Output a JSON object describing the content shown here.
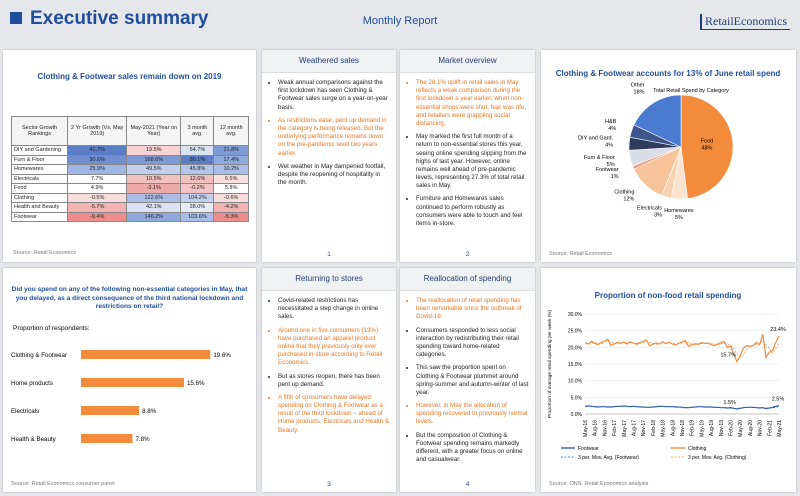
{
  "header": {
    "title": "Executive summary",
    "subtitle": "Monthly Report",
    "logo": "RetailEconomics"
  },
  "table_panel": {
    "title": "Clothing & Footwear sales remain down on 2019",
    "columns": [
      "Sector Growth Rankings",
      "2 Yr Growth (Vs. May 2019)",
      "May-2021 (Year on Year)",
      "3 month avg.",
      "12 month avg."
    ],
    "rows": [
      [
        "DIY and Gardening",
        "41.7%",
        "19.5%",
        "54.7%",
        "21.8%"
      ],
      [
        "Furn & Floor",
        "30.6%",
        "168.6%",
        "80.1%",
        "17.4%"
      ],
      [
        "Homewares",
        "25.9%",
        "49.5%",
        "45.8%",
        "10.2%"
      ],
      [
        "Electricals",
        "7.7%",
        "10.5%",
        "12.6%",
        "6.5%"
      ],
      [
        "Food",
        "4.9%",
        "-3.1%",
        "-0.2%",
        "5.8%"
      ],
      [
        "Clothing",
        "-0.5%",
        "122.6%",
        "104.2%",
        "-0.6%"
      ],
      [
        "Health and Beauty",
        "-5.7%",
        "42.1%",
        "28.0%",
        "-4.2%"
      ],
      [
        "Footwear",
        "-9.4%",
        "146.2%",
        "103.6%",
        "-5.3%"
      ]
    ],
    "cell_colors": [
      [
        "#5a7dc8",
        "#f9d3d3",
        "#dbe3f3",
        "#7f9bd5"
      ],
      [
        "#6f8fd0",
        "#7f9bd5",
        "#5a7dc8",
        "#8fa8dd"
      ],
      [
        "#9fb5e2",
        "#c2d0ee",
        "#b3c5ea",
        "#a9bde6"
      ],
      [
        "#ffffff",
        "#f3c0c0",
        "#f3c0c0",
        "#f9e0e0"
      ],
      [
        "#ffffff",
        "#f0a9a9",
        "#f4c4c4",
        "#ffffff"
      ],
      [
        "#f9dede",
        "#a9bde6",
        "#c2d0ee",
        "#f9dede"
      ],
      [
        "#f3b3b3",
        "#dbe3f3",
        "#e6ecf7",
        "#f3b3b3"
      ],
      [
        "#ec8c8c",
        "#8fa8dd",
        "#a9bde6",
        "#ec8c8c"
      ]
    ],
    "source": "Source: Retail Economics"
  },
  "text_panels": [
    {
      "title": "Weathered sales",
      "page": "1",
      "bullets": [
        {
          "text": "Weak annual comparisons against the first lockdown has seen Clothing & Footwear sales surge on a year-on-year basis.",
          "highlight": false
        },
        {
          "text": "As restrictions ease, pent up demand in the category is being released. But the underlying performance remains down on the pre-pandemic level two years earlier.",
          "highlight": true
        },
        {
          "text": "Wet weather in May dampened footfall, despite the reopening of hospitality in the month.",
          "highlight": false
        }
      ]
    },
    {
      "title": "Market overview",
      "page": "2",
      "bullets": [
        {
          "text": "The 28.1% uplift in retail sales in May reflects a weak comparison during the first lockdown a year earlier, when non-essential shops were shut, fear was rife, and retailers were grappling social distancing.",
          "highlight": true
        },
        {
          "text": "May marked the first full month of a return to non-essential stores this year, seeing online spending slipping from the highs of last year. However, online remains well ahead of pre-pandemic levels, representing 27.3% of total retail sales in May.",
          "highlight": false
        },
        {
          "text": "Furniture and Homewares sales continued to perform robustly as consumers were able to touch and feel items in-store.",
          "highlight": false
        }
      ]
    },
    {
      "title": "Returning to stores",
      "page": "3",
      "bullets": [
        {
          "text": "Covid-related restrictions has necessitated a step change in online sales.",
          "highlight": false
        },
        {
          "text": "Around one in five consumers (19%) have purchased an apparel product online that they previously only ever purchased in-store according to Retail Economics.",
          "highlight": true
        },
        {
          "text": "But as stores reopen, there has been pent up demand.",
          "highlight": false
        },
        {
          "text": "A fifth of consumers have delayed spending on Clothing & Footwear as a result of the third lockdown – ahead of Home products, Electricals and Health & Beauty.",
          "highlight": true
        }
      ]
    },
    {
      "title": "Reallocation of spending",
      "page": "4",
      "bullets": [
        {
          "text": "The reallocation of retail spending has been remarkable since the outbreak of Covid-19.",
          "highlight": true
        },
        {
          "text": "Consumers responded to less social interaction by redistributing their retail spending toward home-related categories.",
          "highlight": false
        },
        {
          "text": "This saw the proportion spent on Clothing & Footwear plummet around spring-summer and autumn-winter of last year.",
          "highlight": false
        },
        {
          "text": "However, in May the allocation of spending recovered to previously normal levels.",
          "highlight": true
        },
        {
          "text": "But the composition of Clothing & Footwear spending remains markedly different, with a greater focus on online and casualwear.",
          "highlight": false
        }
      ]
    }
  ],
  "chart_data": [
    {
      "type": "pie",
      "title": "Clothing & Footwear accounts for 13% of June retail spend",
      "subtitle": "Total Retail Spend by Category",
      "categories": [
        "Food",
        "Homewares",
        "Electricals",
        "Clothing",
        "Footwear",
        "Furn & Floor",
        "DIY and Gard.",
        "H&B",
        "Other"
      ],
      "values": [
        48,
        5,
        3,
        12,
        1,
        5,
        4,
        4,
        18
      ],
      "value_labels": [
        "48%",
        "5%",
        "3%",
        "12%",
        "1%",
        "5%",
        "4%",
        "4%",
        "18%"
      ],
      "colors": [
        "#f28c3c",
        "#fbe3cf",
        "#f9d2b0",
        "#f7c39a",
        "#ef9b7e",
        "#d9dde6",
        "#2f3b5c",
        "#3f568c",
        "#4a7bd0"
      ],
      "source": "Source: Retail Economics"
    },
    {
      "type": "bar",
      "title": "Did you spend on any of the following non-essential categories in May, that you delayed, as a direct consequence of the third national lockdown and restrictions on retail?",
      "subtitle": "Proportion of respondents:",
      "categories": [
        "Clothing & Footwear",
        "Home products",
        "Electricals",
        "Health & Beauty"
      ],
      "values": [
        19.6,
        15.6,
        8.8,
        7.8
      ],
      "value_labels": [
        "19.6%",
        "15.6%",
        "8.8%",
        "7.8%"
      ],
      "color": "#f28c3c",
      "source": "Source: Retail Economics consumer panel"
    },
    {
      "type": "line",
      "title": "Proportion of non-food retail spending",
      "y_label": "Proportion of average retail spending per week (%)",
      "categories": [
        "May-16",
        null,
        null,
        "Aug-16",
        null,
        null,
        "Nov-16",
        null,
        null,
        "Feb-17",
        null,
        null,
        "May-17",
        null,
        null,
        "Aug-17",
        null,
        null,
        "Nov-17",
        null,
        null,
        "Feb-18",
        null,
        null,
        "May-18",
        null,
        null,
        "Aug-18",
        null,
        null,
        "Nov-18",
        null,
        null,
        "Feb-19",
        null,
        null,
        "May-19",
        null,
        null,
        "Aug-19",
        null,
        null,
        "Nov-19",
        null,
        null,
        "Feb-20",
        null,
        null,
        "May-20",
        null,
        null,
        "Aug-20",
        null,
        null,
        "Nov-20",
        null,
        null,
        "Feb-21",
        null,
        null,
        "May-21"
      ],
      "ylim": [
        0,
        30
      ],
      "yticks": [
        {
          "value": 0,
          "label": "0.0%"
        },
        {
          "value": 5,
          "label": "5.0%"
        },
        {
          "value": 10,
          "label": "10.0%"
        },
        {
          "value": 15,
          "label": "15.0%"
        },
        {
          "value": 20,
          "label": "20.0%"
        },
        {
          "value": 25,
          "label": "25.0%"
        },
        {
          "value": 30,
          "label": "30.0%"
        }
      ],
      "grid": true,
      "series": [
        {
          "name": "Footwear",
          "color": "#2f5fb3",
          "dash": false,
          "values": [
            2.3,
            2.4,
            2.3,
            2.2,
            2.1,
            2.2,
            2.2,
            2.1,
            2.1,
            2.2,
            2.3,
            2.3,
            2.4,
            2.3,
            2.2,
            2.3,
            2.2,
            2.1,
            2.1,
            2.0,
            2.0,
            2.1,
            2.2,
            2.3,
            2.3,
            2.2,
            2.2,
            2.2,
            2.1,
            2.1,
            2.0,
            1.9,
            1.9,
            2.0,
            2.1,
            2.2,
            2.2,
            2.1,
            2.1,
            2.1,
            2.0,
            2.0,
            1.9,
            1.9,
            1.8,
            1.9,
            1.7,
            1.5,
            1.7,
            1.9,
            2.0,
            2.0,
            2.0,
            1.9,
            1.8,
            1.9,
            1.6,
            1.8,
            2.0,
            2.3,
            2.5
          ],
          "value_labels": [
            null,
            null,
            null,
            null,
            null,
            null,
            null,
            null,
            null,
            null,
            null,
            null,
            null,
            null,
            null,
            null,
            null,
            null,
            null,
            null,
            null,
            null,
            null,
            null,
            null,
            null,
            null,
            null,
            null,
            null,
            null,
            null,
            null,
            null,
            null,
            null,
            null,
            null,
            null,
            null,
            null,
            null,
            null,
            null,
            null,
            null,
            null,
            "1.5%",
            null,
            null,
            null,
            null,
            null,
            null,
            null,
            null,
            null,
            null,
            null,
            null,
            "2.5%"
          ]
        },
        {
          "name": "Clothing",
          "color": "#f28c3c",
          "dash": false,
          "values": [
            21.5,
            21.0,
            21.8,
            21.2,
            20.8,
            21.4,
            21.9,
            22.4,
            20.6,
            21.0,
            21.5,
            21.2,
            21.6,
            21.0,
            21.7,
            21.3,
            20.9,
            21.5,
            21.8,
            22.2,
            20.4,
            20.9,
            21.3,
            21.0,
            21.7,
            21.1,
            21.5,
            21.0,
            20.7,
            21.2,
            21.6,
            22.0,
            20.3,
            20.8,
            21.1,
            20.9,
            21.4,
            21.2,
            21.3,
            20.8,
            20.5,
            21.0,
            21.4,
            21.8,
            20.0,
            20.4,
            18.0,
            15.7,
            17.5,
            19.8,
            20.5,
            20.3,
            20.6,
            21.5,
            20.8,
            23.9,
            17.0,
            18.5,
            19.0,
            21.5,
            23.4
          ],
          "value_labels": [
            null,
            null,
            null,
            null,
            null,
            null,
            null,
            null,
            null,
            null,
            null,
            null,
            null,
            null,
            null,
            null,
            null,
            null,
            null,
            null,
            null,
            null,
            null,
            null,
            null,
            null,
            null,
            null,
            null,
            null,
            null,
            null,
            null,
            null,
            null,
            null,
            null,
            null,
            null,
            null,
            null,
            null,
            null,
            null,
            null,
            null,
            null,
            "15.7%",
            null,
            null,
            null,
            null,
            null,
            null,
            null,
            null,
            null,
            null,
            null,
            null,
            "23.4%"
          ]
        },
        {
          "name": "3 per. Mov. Avg. (Footwear)",
          "color": "#2f5fb3",
          "dash": true,
          "values": [
            null,
            null,
            2.3,
            2.3,
            2.2,
            2.2,
            2.2,
            2.1,
            2.1,
            2.2,
            2.2,
            2.3,
            2.3,
            2.3,
            2.3,
            2.3,
            2.2,
            2.2,
            2.1,
            2.1,
            2.0,
            2.1,
            2.1,
            2.2,
            2.3,
            2.3,
            2.2,
            2.2,
            2.2,
            2.1,
            2.0,
            2.0,
            1.9,
            2.0,
            2.1,
            2.2,
            2.2,
            2.1,
            2.1,
            2.1,
            2.0,
            1.9,
            1.9,
            1.9,
            1.8,
            1.7,
            1.7,
            1.7,
            1.8,
            1.9,
            2.0,
            2.0,
            1.9,
            1.9,
            1.9,
            1.8,
            1.8,
            1.8,
            1.8,
            2.0,
            2.3
          ]
        },
        {
          "name": "3 per. Mov. Avg. (Clothing)",
          "color": "#f28c3c",
          "dash": true,
          "values": [
            null,
            null,
            21.4,
            21.3,
            21.3,
            21.1,
            21.4,
            21.9,
            21.6,
            21.3,
            21.0,
            21.2,
            21.4,
            21.3,
            21.4,
            21.3,
            21.3,
            21.2,
            21.4,
            21.8,
            21.5,
            21.2,
            20.9,
            21.1,
            21.3,
            21.3,
            21.4,
            21.2,
            21.1,
            21.1,
            21.3,
            21.6,
            21.4,
            21.0,
            20.7,
            20.9,
            21.1,
            21.2,
            21.3,
            21.1,
            20.9,
            20.8,
            21.0,
            21.4,
            21.1,
            20.7,
            19.5,
            18.0,
            17.1,
            17.7,
            19.3,
            20.2,
            20.5,
            20.8,
            21.0,
            22.1,
            20.6,
            19.8,
            18.2,
            19.7,
            21.3
          ]
        }
      ],
      "source": "Source: ONS, Retail Economics analysis"
    }
  ]
}
